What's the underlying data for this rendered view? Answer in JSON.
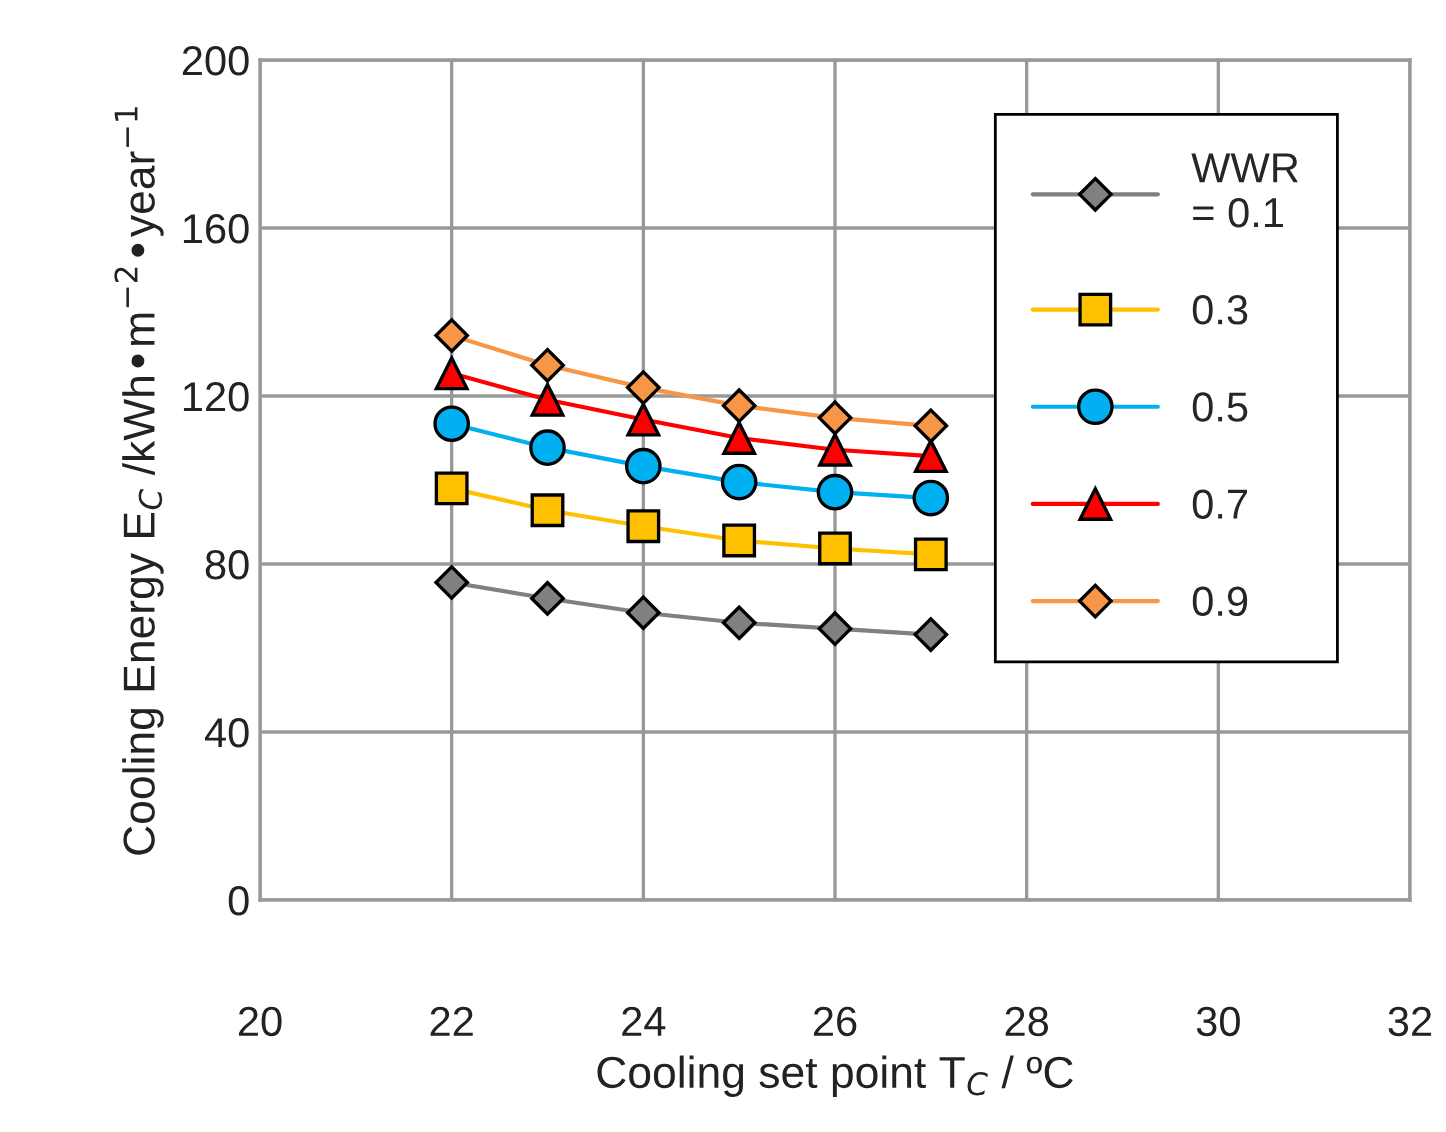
{
  "chart_data": {
    "type": "line",
    "xlabel": "Cooling set point T$_{C}$ / ºC",
    "ylabel": "Cooling Energy E$_{C}$ /kWh•m$^{−2}$•year$^{−1}$",
    "x": [
      22,
      23,
      24,
      25,
      26,
      27
    ],
    "series": [
      {
        "name": "WWR\n= 0.1",
        "color": "#808080",
        "marker": "diamond",
        "values": [
          75.6,
          71.8,
          68.4,
          66,
          64.6,
          63.2
        ]
      },
      {
        "name": "0.3",
        "color": "#ffc000",
        "marker": "square",
        "values": [
          98,
          92.8,
          89,
          85.6,
          83.7,
          82.3
        ]
      },
      {
        "name": "0.5",
        "color": "#00b0f0",
        "marker": "circle",
        "values": [
          113.4,
          107.7,
          103.3,
          99.5,
          97.1,
          95.7
        ]
      },
      {
        "name": "0.7",
        "color": "#ff0000",
        "marker": "triangle",
        "values": [
          125.4,
          119.1,
          114.4,
          110,
          107.2,
          105.7
        ]
      },
      {
        "name": "0.9",
        "color": "#f79646",
        "marker": "diamond",
        "values": [
          134.4,
          127.3,
          122,
          117.7,
          114.8,
          112.9
        ]
      }
    ],
    "xlim": [
      20,
      32
    ],
    "xticks": [
      20,
      22,
      24,
      26,
      28,
      30,
      32
    ],
    "ylim": [
      0,
      200
    ],
    "yticks": [
      0,
      40,
      80,
      120,
      160,
      200
    ],
    "grid": true,
    "legend": "top right"
  }
}
